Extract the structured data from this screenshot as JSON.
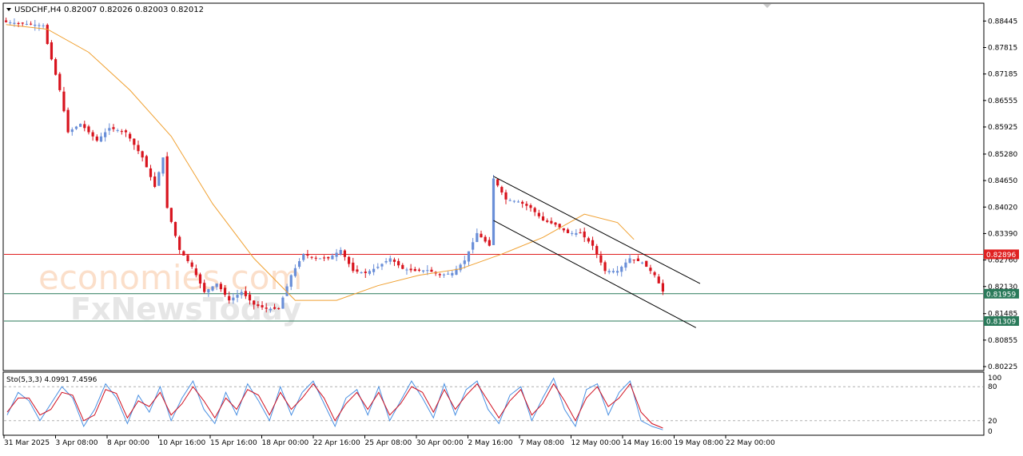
{
  "header": {
    "symbol_label": "USDCHF,H4",
    "ohlc_label": "0.82007 0.82026 0.82003 0.82012"
  },
  "indicator": {
    "label": "Sto(5,3,3) 4.0991 7.4596"
  },
  "watermark": {
    "line1": "economies.com",
    "line2": "FxNewsToday"
  },
  "colors": {
    "bull": "#6a8fd8",
    "bear": "#d8141e",
    "ma": "#f0a030",
    "channel": "#000000",
    "resistance": "#e02020",
    "support": "#2a7a5a",
    "stoch_main": "#4a90e2",
    "stoch_signal": "#d01020"
  },
  "chart_data": [
    {
      "type": "candlestick",
      "title": "USDCHF,H4",
      "ylim": [
        0.8015,
        0.8885
      ],
      "y_ticks": [
        "0.88445",
        "0.87815",
        "0.87185",
        "0.86555",
        "0.85925",
        "0.85280",
        "0.84650",
        "0.84020",
        "0.83390",
        "0.82760",
        "0.82130",
        "0.81485",
        "0.80855",
        "0.80225"
      ],
      "x_ticks": [
        "31 Mar 2025",
        "3 Apr 08:00",
        "8 Apr 00:00",
        "10 Apr 16:00",
        "15 Apr 16:00",
        "18 Apr 00:00",
        "22 Apr 16:00",
        "25 Apr 08:00",
        "30 Apr 00:00",
        "2 May 16:00",
        "7 May 08:00",
        "12 May 00:00",
        "14 May 16:00",
        "19 May 08:00",
        "22 May 00:00"
      ],
      "close_path": [
        [
          0,
          0.8842
        ],
        [
          9,
          0.8834
        ],
        [
          10,
          0.879
        ],
        [
          13,
          0.868
        ],
        [
          15,
          0.858
        ],
        [
          18,
          0.86
        ],
        [
          22,
          0.856
        ],
        [
          25,
          0.859
        ],
        [
          29,
          0.858
        ],
        [
          33,
          0.852
        ],
        [
          36,
          0.845
        ],
        [
          38,
          0.852
        ],
        [
          39,
          0.84
        ],
        [
          42,
          0.83
        ],
        [
          45,
          0.826
        ],
        [
          48,
          0.82
        ],
        [
          51,
          0.822
        ],
        [
          54,
          0.818
        ],
        [
          57,
          0.82
        ],
        [
          60,
          0.817
        ],
        [
          63,
          0.816
        ],
        [
          66,
          0.816
        ],
        [
          69,
          0.824
        ],
        [
          72,
          0.829
        ],
        [
          75,
          0.828
        ],
        [
          78,
          0.828
        ],
        [
          81,
          0.83
        ],
        [
          84,
          0.825
        ],
        [
          87,
          0.8245
        ],
        [
          90,
          0.826
        ],
        [
          93,
          0.828
        ],
        [
          96,
          0.8255
        ],
        [
          99,
          0.825
        ],
        [
          102,
          0.8252
        ],
        [
          105,
          0.824
        ],
        [
          108,
          0.8245
        ],
        [
          111,
          0.8275
        ],
        [
          114,
          0.834
        ],
        [
          117,
          0.831
        ],
        [
          118,
          0.847
        ],
        [
          121,
          0.842
        ],
        [
          124,
          0.8415
        ],
        [
          127,
          0.84
        ],
        [
          130,
          0.837
        ],
        [
          133,
          0.836
        ],
        [
          136,
          0.834
        ],
        [
          139,
          0.834
        ],
        [
          142,
          0.831
        ],
        [
          145,
          0.825
        ],
        [
          148,
          0.825
        ],
        [
          151,
          0.828
        ],
        [
          154,
          0.827
        ],
        [
          157,
          0.824
        ],
        [
          159,
          0.8201
        ]
      ],
      "series": [
        {
          "name": "MA",
          "x": [
            0,
            10,
            20,
            30,
            40,
            50,
            60,
            70,
            80,
            90,
            100,
            110,
            120,
            130,
            140,
            148,
            152
          ],
          "values": [
            0.8836,
            0.8825,
            0.877,
            0.868,
            0.857,
            0.841,
            0.828,
            0.818,
            0.818,
            0.8215,
            0.824,
            0.8255,
            0.829,
            0.833,
            0.8385,
            0.8365,
            0.8325
          ]
        }
      ],
      "channel": [
        {
          "x": [
            118,
            168
          ],
          "values": [
            0.8475,
            0.822
          ]
        },
        {
          "x": [
            118,
            167
          ],
          "values": [
            0.837,
            0.8115
          ]
        }
      ],
      "horizontal_lines": [
        {
          "value": 0.82896,
          "label": "0.82896"
        },
        {
          "value": 0.81959,
          "label": "0.81959"
        },
        {
          "value": 0.81309,
          "label": "0.81309"
        }
      ]
    },
    {
      "type": "line",
      "title": "Sto(5,3,3)",
      "ylim": [
        0,
        100
      ],
      "y_ticks": [
        "100",
        "80",
        "20",
        "0"
      ],
      "levels": [
        80,
        20
      ],
      "series": [
        {
          "name": "main",
          "values": [
            30,
            70,
            55,
            20,
            50,
            80,
            60,
            10,
            40,
            85,
            60,
            15,
            65,
            35,
            80,
            20,
            60,
            90,
            40,
            15,
            70,
            30,
            85,
            55,
            20,
            80,
            30,
            70,
            90,
            50,
            10,
            60,
            75,
            30,
            80,
            20,
            55,
            90,
            60,
            25,
            85,
            30,
            75,
            90,
            40,
            15,
            65,
            80,
            20,
            60,
            95,
            40,
            10,
            75,
            85,
            30,
            70,
            90,
            20,
            10,
            4
          ]
        },
        {
          "name": "signal",
          "values": [
            35,
            60,
            60,
            30,
            40,
            70,
            65,
            20,
            30,
            75,
            68,
            25,
            55,
            45,
            70,
            30,
            50,
            80,
            55,
            25,
            60,
            40,
            75,
            65,
            30,
            70,
            40,
            60,
            85,
            60,
            20,
            50,
            70,
            40,
            70,
            30,
            50,
            80,
            70,
            35,
            75,
            40,
            65,
            85,
            55,
            25,
            55,
            75,
            30,
            50,
            85,
            55,
            20,
            60,
            80,
            45,
            60,
            85,
            35,
            15,
            7
          ]
        }
      ]
    }
  ]
}
